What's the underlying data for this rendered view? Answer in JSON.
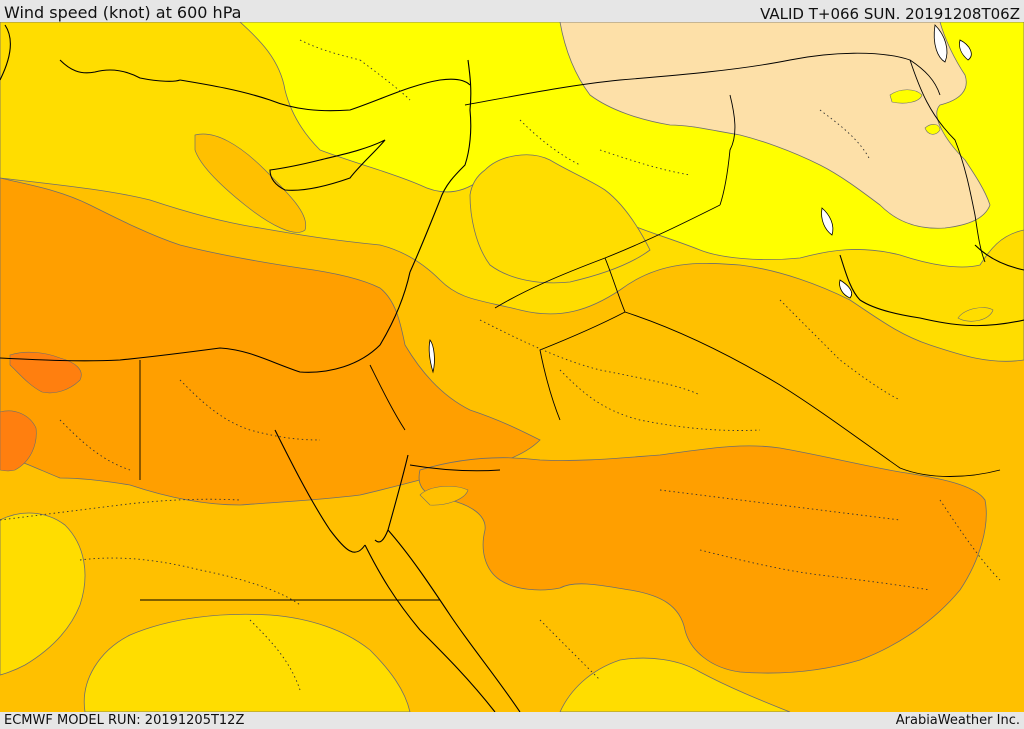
{
  "header": {
    "title": "Wind speed (knot) at 600 hPa",
    "valid": "VALID T+066 SUN. 20191208T06Z"
  },
  "footer": {
    "model_run": "ECMWF MODEL RUN: 20191205T12Z",
    "credit": "ArabiaWeather Inc."
  },
  "map": {
    "palette": {
      "band_lightest": "#fde0a8",
      "band_yellow": "#ffff00",
      "band_gold": "#ffdd00",
      "band_amber": "#ffc000",
      "band_orange": "#ff9f00",
      "band_dark_orange": "#ff7f0f",
      "sea_lake": "#ffffff"
    }
  }
}
